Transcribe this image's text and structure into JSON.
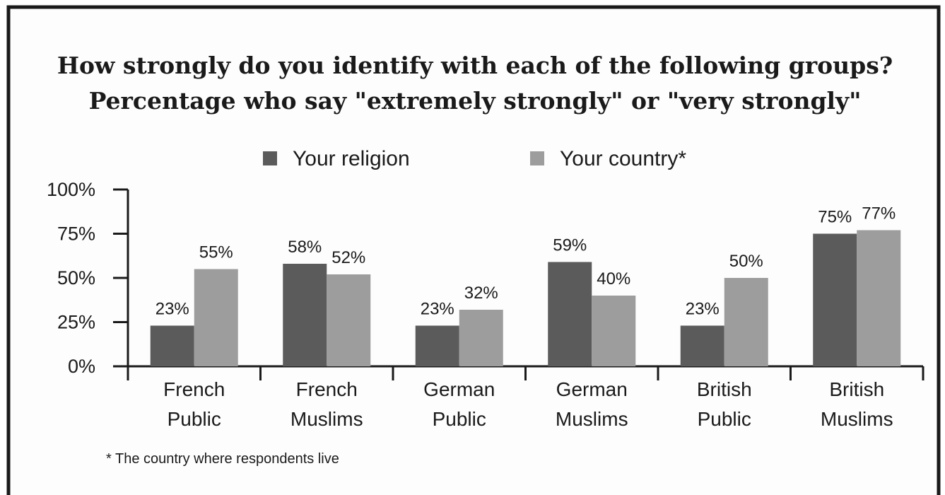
{
  "chart_data": {
    "type": "bar",
    "title": "How strongly do you identify with each of the following groups?",
    "subtitle": "Percentage who say \"extremely strongly\" or \"very strongly\"",
    "categories": [
      [
        "French",
        "Public"
      ],
      [
        "French",
        "Muslims"
      ],
      [
        "German",
        "Public"
      ],
      [
        "German",
        "Muslims"
      ],
      [
        "British",
        "Public"
      ],
      [
        "British",
        "Muslims"
      ]
    ],
    "series": [
      {
        "name": "Your religion",
        "color": "#5b5b5b",
        "values": [
          23,
          58,
          23,
          59,
          23,
          75
        ]
      },
      {
        "name": "Your country*",
        "color": "#9d9d9d",
        "values": [
          55,
          52,
          32,
          40,
          50,
          77
        ]
      }
    ],
    "yticks": [
      "0%",
      "25%",
      "50%",
      "75%",
      "100%"
    ],
    "ylim": [
      0,
      100
    ],
    "legend": "top-center",
    "footnote": "* The country where respondents live"
  }
}
